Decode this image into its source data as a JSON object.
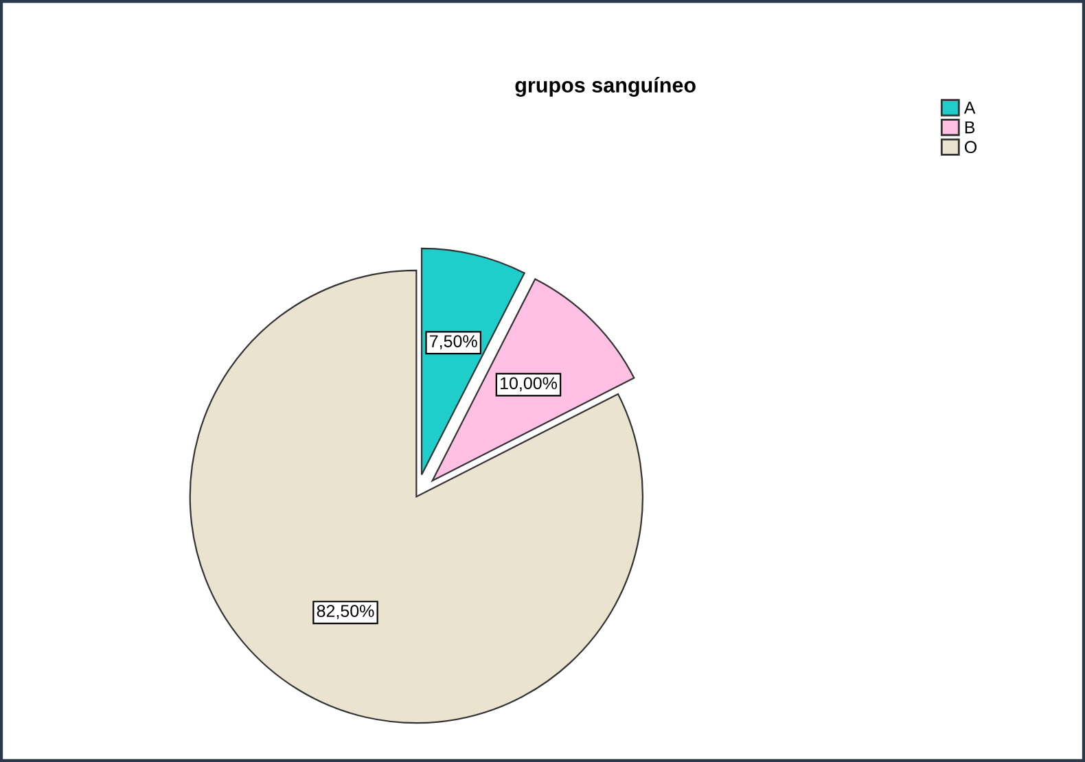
{
  "chart_data": {
    "type": "pie",
    "title": "grupos sanguíneo",
    "categories": [
      "A",
      "B",
      "O"
    ],
    "values": [
      7.5,
      10,
      82.5
    ],
    "colors": [
      "#1fcecb",
      "#ffc0e3",
      "#e9e3cf"
    ],
    "value_labels": [
      "7,50%",
      "10,00%",
      "82,50%"
    ],
    "legend": "top right"
  }
}
